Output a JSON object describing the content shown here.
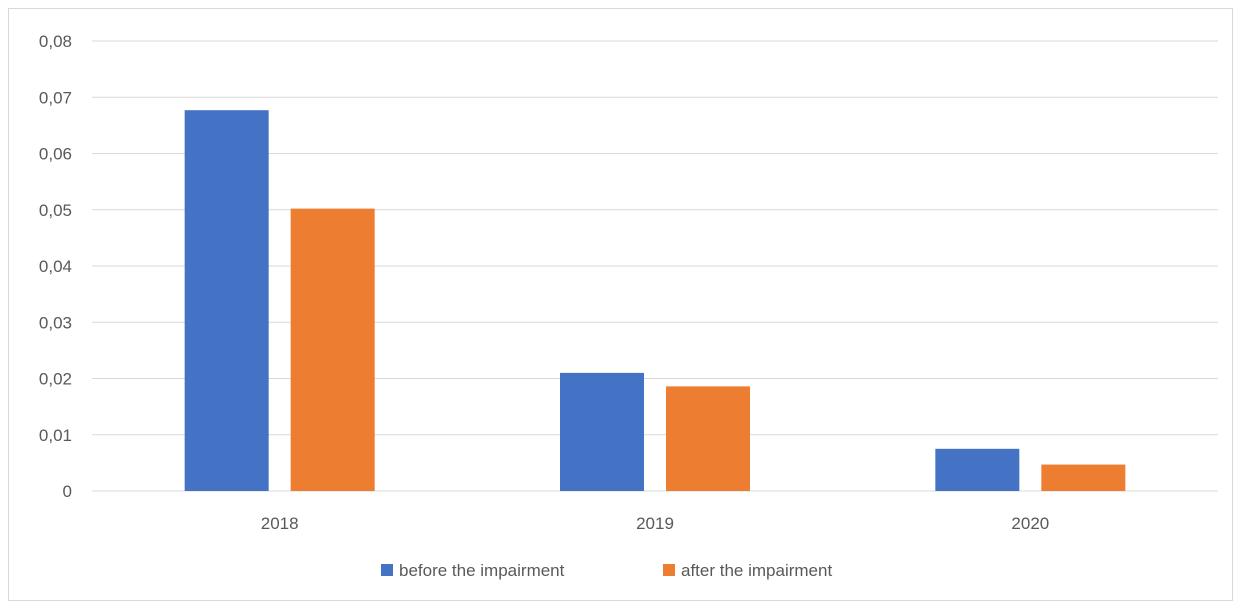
{
  "chart_data": {
    "type": "bar",
    "categories": [
      "2018",
      "2019",
      "2020"
    ],
    "series": [
      {
        "name": "before the impairment",
        "color": "#4472C4",
        "values": [
          0.0677,
          0.021,
          0.0075
        ]
      },
      {
        "name": "after the impairment",
        "color": "#ED7D31",
        "values": [
          0.0502,
          0.0186,
          0.0047
        ]
      }
    ],
    "title": "",
    "xlabel": "",
    "ylabel": "",
    "ylim": [
      0,
      0.08
    ],
    "yticks": [
      0,
      0.01,
      0.02,
      0.03,
      0.04,
      0.05,
      0.06,
      0.07,
      0.08
    ],
    "ytick_labels": [
      "0",
      "0,01",
      "0,02",
      "0,03",
      "0,04",
      "0,05",
      "0,06",
      "0,07",
      "0,08"
    ],
    "grid": true,
    "legend_position": "bottom",
    "colors": {
      "gridline": "#d9d9d9",
      "text": "#595959",
      "frame": "#d9d9d9"
    }
  }
}
